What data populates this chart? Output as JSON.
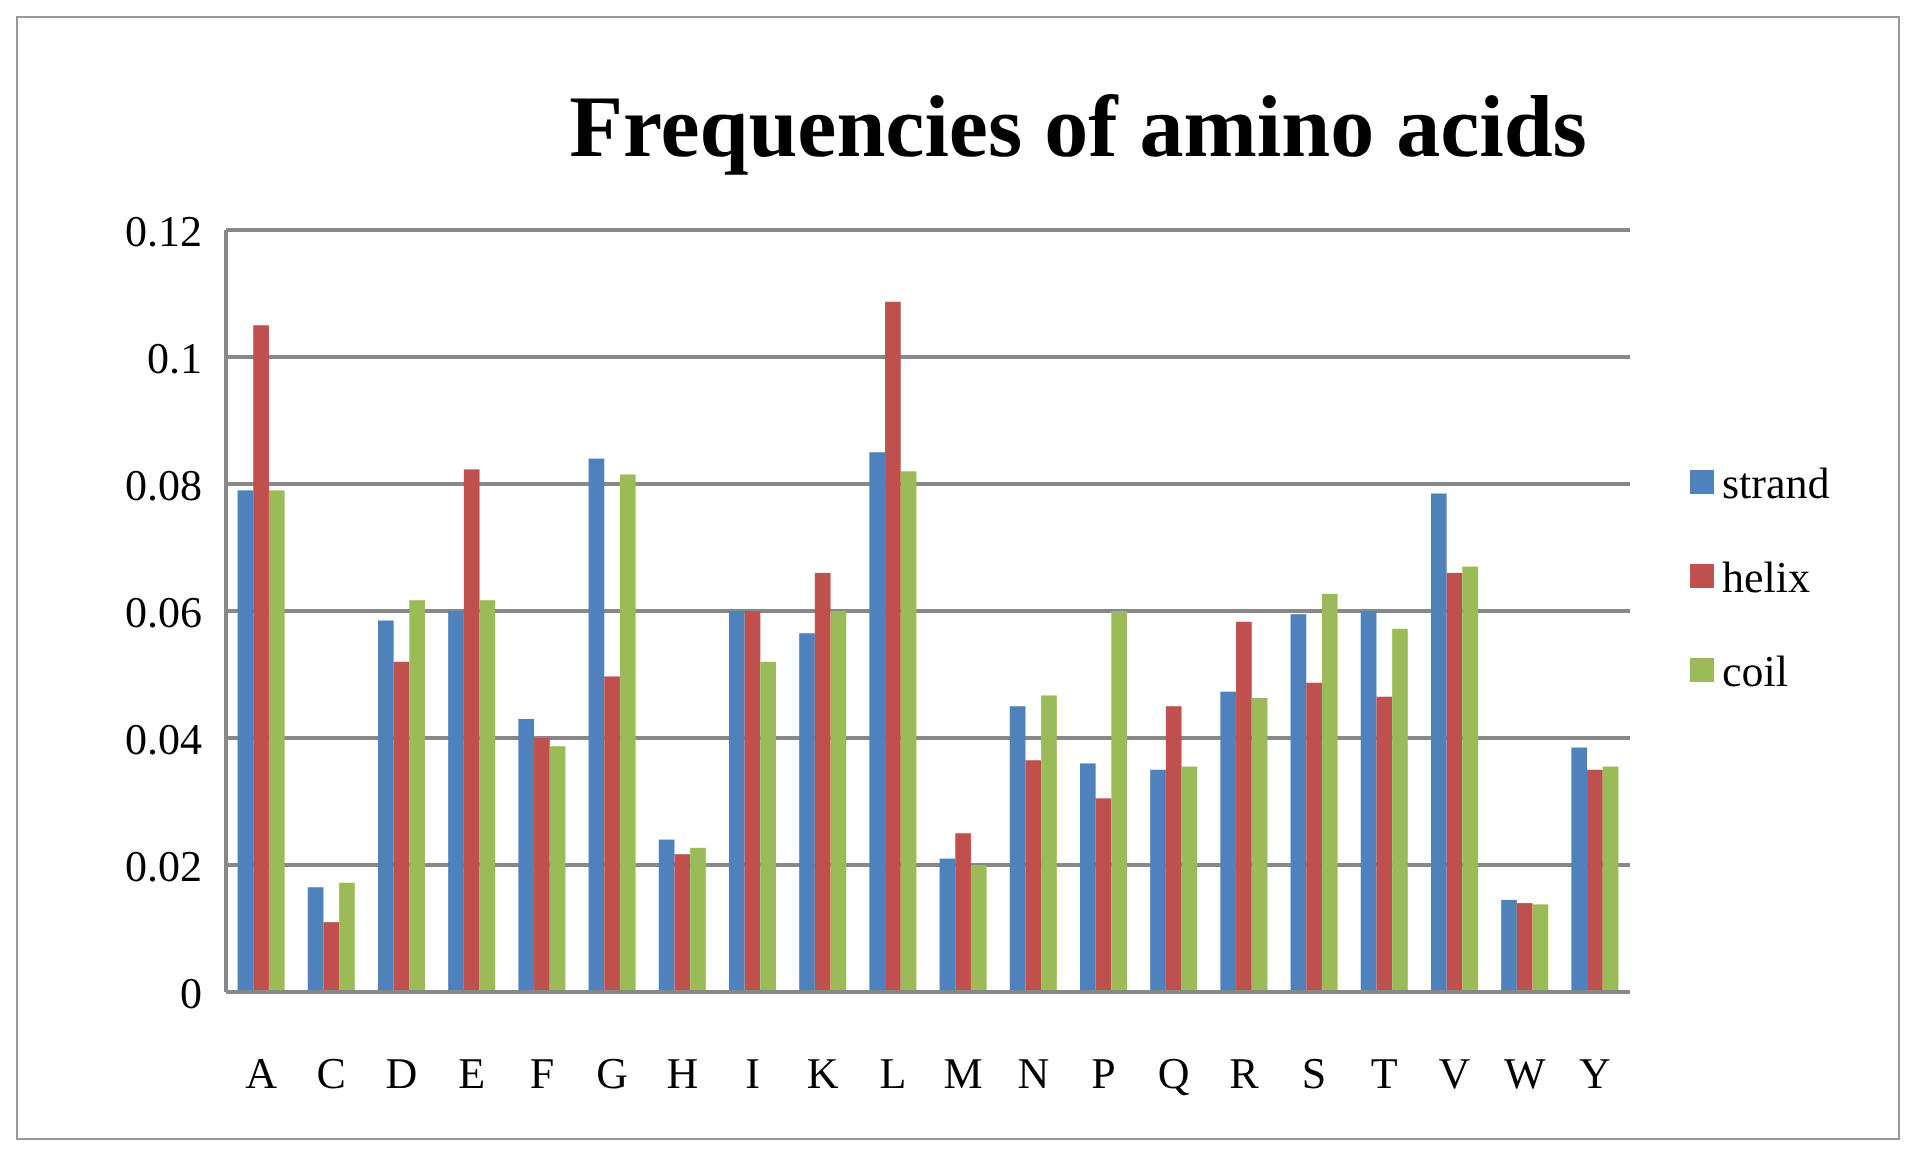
{
  "chart_data": {
    "type": "bar",
    "title": "Frequencies of amino acids",
    "categories": [
      "A",
      "C",
      "D",
      "E",
      "F",
      "G",
      "H",
      "I",
      "K",
      "L",
      "M",
      "N",
      "P",
      "Q",
      "R",
      "S",
      "T",
      "V",
      "W",
      "Y"
    ],
    "series": [
      {
        "name": "strand",
        "color": "#4f81bd",
        "values": [
          0.079,
          0.0165,
          0.0585,
          0.06,
          0.043,
          0.084,
          0.024,
          0.06,
          0.0565,
          0.085,
          0.021,
          0.045,
          0.036,
          0.035,
          0.0473,
          0.0595,
          0.06,
          0.0785,
          0.0145,
          0.0385
        ]
      },
      {
        "name": "helix",
        "color": "#c0504d",
        "values": [
          0.105,
          0.011,
          0.052,
          0.0823,
          0.04,
          0.0497,
          0.0217,
          0.06,
          0.066,
          0.1087,
          0.025,
          0.0365,
          0.0305,
          0.045,
          0.0583,
          0.0487,
          0.0465,
          0.066,
          0.014,
          0.035
        ]
      },
      {
        "name": "coil",
        "color": "#9bbb59",
        "values": [
          0.079,
          0.0172,
          0.0617,
          0.0617,
          0.0387,
          0.0815,
          0.0227,
          0.052,
          0.06,
          0.082,
          0.02,
          0.0467,
          0.06,
          0.0355,
          0.0463,
          0.0627,
          0.0572,
          0.067,
          0.0138,
          0.0355
        ]
      }
    ],
    "ylim": [
      0,
      0.12
    ],
    "yticks": [
      0,
      0.02,
      0.04,
      0.06,
      0.08,
      0.1,
      0.12
    ],
    "grid": "y",
    "legend": "right"
  }
}
